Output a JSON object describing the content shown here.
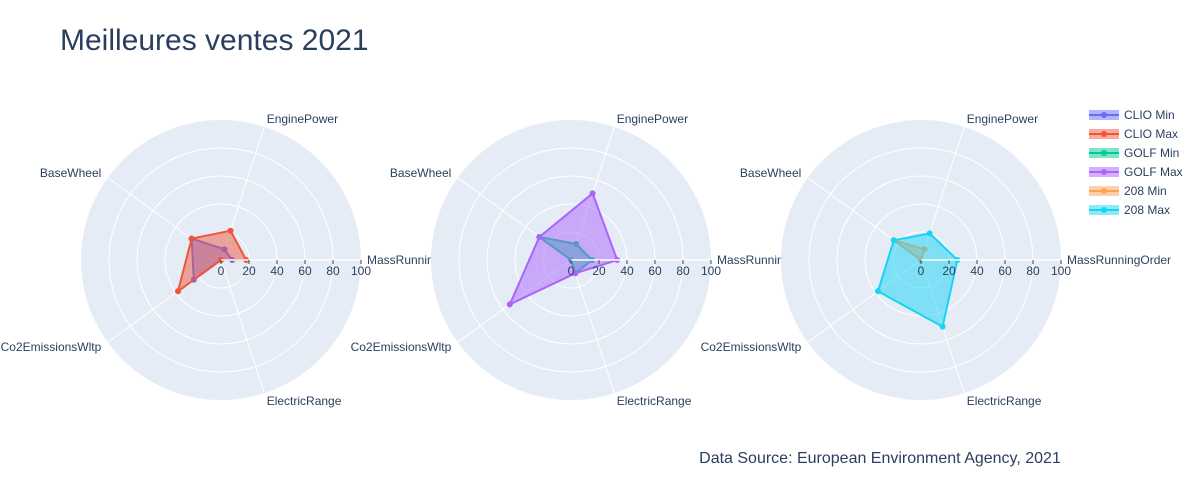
{
  "chart_data": {
    "type": "radar",
    "title": "Meilleures ventes 2021",
    "source": "Data Source: European Environment Agency, 2021",
    "axes": [
      "MassRunningOrder",
      "EnginePower",
      "BaseWheel",
      "Co2EmissionsWltp",
      "ElectricRange"
    ],
    "radial_range": [
      0,
      100
    ],
    "radial_ticks": [
      0,
      20,
      40,
      60,
      80,
      100
    ],
    "legend_position": "top-right",
    "colors": {
      "bg": "#e5ecf6",
      "clio_min": "#636efa",
      "clio_max": "#ef553b",
      "golf_min": "#00cc96",
      "golf_max": "#ab63fa",
      "p208_min": "#ffa15a",
      "p208_max": "#19d3f3"
    },
    "series": [
      {
        "name": "CLIO Min",
        "key": "clio_min",
        "subplot": 0,
        "values": [
          8,
          8,
          26,
          24,
          0
        ]
      },
      {
        "name": "CLIO Max",
        "key": "clio_max",
        "subplot": 0,
        "values": [
          18,
          22,
          26,
          38,
          0
        ]
      },
      {
        "name": "GOLF Min",
        "key": "golf_min",
        "subplot": 1,
        "values": [
          15,
          12,
          28,
          0,
          10
        ]
      },
      {
        "name": "GOLF Max",
        "key": "golf_max",
        "subplot": 1,
        "values": [
          33,
          50,
          28,
          54,
          10
        ]
      },
      {
        "name": "208 Min",
        "key": "p208_min",
        "subplot": 2,
        "values": [
          0,
          8,
          24,
          0,
          0
        ]
      },
      {
        "name": "208 Max",
        "key": "p208_max",
        "subplot": 2,
        "values": [
          26,
          20,
          24,
          38,
          50
        ]
      }
    ]
  }
}
